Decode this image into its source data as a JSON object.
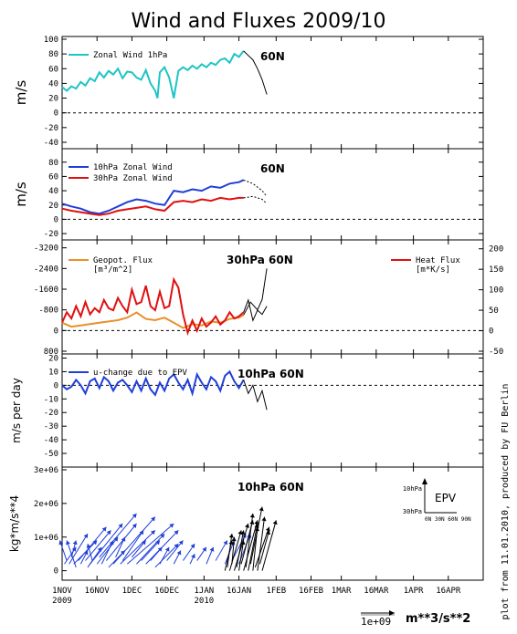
{
  "page": {
    "title": "Wind and Fluxes 2009/10",
    "credit": "plot from 11.01.2010, produced by FU Berlin",
    "scale_value": "1e+09",
    "scale_unit": "m**3/s**2"
  },
  "x_axis": {
    "tick_days": [
      0,
      15,
      30,
      45,
      61,
      76,
      92,
      107,
      120,
      135,
      151,
      166
    ],
    "tick_labels": [
      "1NOV",
      "16NOV",
      "1DEC",
      "16DEC",
      "1JAN",
      "16JAN",
      "1FEB",
      "16FEB",
      "1MAR",
      "16MAR",
      "1APR",
      "16APR"
    ],
    "year_labels": [
      {
        "day": 0,
        "text": "2009"
      },
      {
        "day": 61,
        "text": "2010"
      }
    ],
    "range": [
      0,
      181
    ]
  },
  "chart_data": [
    {
      "id": "zonal-wind-1hpa",
      "type": "line",
      "ylabel": "m/s",
      "region": "60N",
      "ylim": [
        -45,
        100
      ],
      "yticks": [
        -40,
        -20,
        0,
        20,
        40,
        60,
        80,
        100
      ],
      "zero_line": 0,
      "legend": [
        {
          "label": "Zonal Wind 1hPa",
          "color": "#1fc4c4"
        }
      ],
      "series": [
        {
          "name": "Zonal Wind 1hPa",
          "color": "#1fc4c4",
          "x": [
            0,
            2,
            4,
            6,
            8,
            10,
            12,
            14,
            16,
            18,
            20,
            22,
            24,
            26,
            28,
            30,
            32,
            34,
            36,
            38,
            40,
            41,
            42,
            44,
            46,
            48,
            50,
            52,
            54,
            56,
            58,
            60,
            62,
            64,
            66,
            68,
            70,
            72,
            74,
            76,
            78
          ],
          "y": [
            35,
            30,
            36,
            33,
            42,
            37,
            47,
            43,
            55,
            48,
            57,
            52,
            60,
            47,
            56,
            55,
            48,
            45,
            58,
            40,
            30,
            20,
            55,
            62,
            48,
            20,
            57,
            62,
            58,
            64,
            60,
            66,
            62,
            68,
            65,
            72,
            74,
            68,
            80,
            76,
            84
          ]
        },
        {
          "name": "",
          "color": "#000000",
          "x": [
            78,
            80,
            82,
            84,
            86,
            88
          ],
          "y": [
            84,
            78,
            72,
            60,
            45,
            25
          ]
        }
      ]
    },
    {
      "id": "zonal-wind-10-30hpa",
      "type": "line",
      "ylabel": "m/s",
      "region": "60N",
      "ylim": [
        -25,
        95
      ],
      "yticks": [
        -20,
        0,
        20,
        40,
        60,
        80
      ],
      "zero_line": 0,
      "legend": [
        {
          "label": "10hPa Zonal Wind",
          "color": "#1f3fd8"
        },
        {
          "label": "30hPa Zonal Wind",
          "color": "#e01010"
        }
      ],
      "series": [
        {
          "name": "10hPa Zonal Wind",
          "color": "#1f3fd8",
          "x": [
            0,
            4,
            8,
            12,
            16,
            20,
            24,
            28,
            32,
            36,
            40,
            44,
            48,
            52,
            56,
            60,
            64,
            68,
            72,
            76,
            78
          ],
          "y": [
            22,
            18,
            15,
            10,
            8,
            12,
            18,
            24,
            28,
            26,
            22,
            20,
            40,
            38,
            42,
            40,
            46,
            44,
            50,
            52,
            55
          ]
        },
        {
          "name": "30hPa Zonal Wind",
          "color": "#e01010",
          "x": [
            0,
            4,
            8,
            12,
            16,
            20,
            24,
            28,
            32,
            36,
            40,
            44,
            48,
            52,
            56,
            60,
            64,
            68,
            72,
            76,
            78
          ],
          "y": [
            15,
            12,
            10,
            8,
            6,
            8,
            12,
            14,
            16,
            18,
            14,
            12,
            24,
            26,
            24,
            28,
            26,
            30,
            28,
            30,
            30
          ]
        },
        {
          "name": "",
          "color": "#000000",
          "dashed": true,
          "x": [
            78,
            82,
            86,
            88
          ],
          "y": [
            55,
            50,
            40,
            32
          ]
        },
        {
          "name": "",
          "color": "#000000",
          "dashed": true,
          "x": [
            78,
            82,
            86,
            88
          ],
          "y": [
            30,
            32,
            28,
            22
          ]
        }
      ]
    },
    {
      "id": "fluxes-30hpa",
      "type": "line",
      "region": "30hPa 60N",
      "ylim_left": [
        -3400,
        800
      ],
      "yticks_left": [
        800,
        0,
        -800,
        -1600,
        -2400,
        -3200
      ],
      "ylim_right": [
        -50,
        215
      ],
      "yticks_right": [
        -50,
        0,
        50,
        100,
        150,
        200
      ],
      "zero_line": 0,
      "legend": [
        {
          "label": "Geopot. Flux",
          "sub": "[m³/m^2]",
          "color": "#e8902a"
        },
        {
          "label": "Heat Flux",
          "sub": "[m*K/s]",
          "color": "#e01010"
        }
      ],
      "series": [
        {
          "name": "Geopot. Flux",
          "color": "#e8902a",
          "axis": "left",
          "x": [
            0,
            4,
            8,
            12,
            16,
            20,
            24,
            28,
            32,
            36,
            40,
            44,
            48,
            52,
            56,
            60,
            64,
            68,
            72,
            76,
            78
          ],
          "y": [
            -300,
            -150,
            -200,
            -250,
            -300,
            -350,
            -400,
            -500,
            -700,
            -450,
            -400,
            -500,
            -300,
            -100,
            -250,
            -200,
            -350,
            -300,
            -450,
            -500,
            -600
          ]
        },
        {
          "name": "Heat Flux",
          "color": "#e01010",
          "axis": "right",
          "x": [
            0,
            2,
            4,
            6,
            8,
            10,
            12,
            14,
            16,
            18,
            20,
            22,
            24,
            26,
            28,
            30,
            32,
            34,
            36,
            38,
            40,
            42,
            44,
            46,
            48,
            50,
            52,
            54,
            56,
            58,
            60,
            62,
            64,
            66,
            68,
            70,
            72,
            74,
            76,
            78
          ],
          "y": [
            20,
            45,
            30,
            60,
            35,
            70,
            40,
            55,
            45,
            75,
            55,
            50,
            80,
            60,
            45,
            100,
            65,
            70,
            110,
            60,
            50,
            95,
            55,
            60,
            125,
            105,
            40,
            -5,
            25,
            0,
            30,
            10,
            20,
            35,
            15,
            25,
            45,
            30,
            35,
            45
          ]
        },
        {
          "name": "",
          "color": "#000000",
          "axis": "left",
          "x": [
            78,
            81,
            84,
            86,
            88
          ],
          "y": [
            -600,
            -1100,
            -800,
            -1200,
            -2400
          ]
        },
        {
          "name": "",
          "color": "#000000",
          "axis": "right",
          "x": [
            78,
            80,
            82,
            84,
            86,
            88
          ],
          "y": [
            45,
            75,
            25,
            50,
            40,
            60
          ]
        }
      ]
    },
    {
      "id": "u-change-epv",
      "type": "line",
      "ylabel": "m/s per day",
      "region": "10hPa 60N",
      "ylim": [
        -58,
        21
      ],
      "yticks": [
        20,
        10,
        0,
        -10,
        -20,
        -30,
        -40,
        -50
      ],
      "zero_line": 0,
      "legend": [
        {
          "label": "u-change due to EPV",
          "color": "#1f3fd8"
        }
      ],
      "series": [
        {
          "name": "u-change due to EPV",
          "color": "#1f3fd8",
          "x": [
            0,
            2,
            4,
            6,
            8,
            10,
            12,
            14,
            16,
            18,
            20,
            22,
            24,
            26,
            28,
            30,
            32,
            34,
            36,
            38,
            40,
            42,
            44,
            46,
            48,
            50,
            52,
            54,
            56,
            58,
            60,
            62,
            64,
            66,
            68,
            70,
            72,
            74,
            76,
            78
          ],
          "y": [
            0,
            -3,
            -1,
            4,
            0,
            -6,
            3,
            5,
            -2,
            6,
            3,
            -4,
            2,
            4,
            0,
            -5,
            3,
            -4,
            5,
            -3,
            -7,
            2,
            -4,
            5,
            8,
            2,
            -3,
            4,
            -6,
            8,
            2,
            -3,
            6,
            3,
            -4,
            7,
            10,
            3,
            -2,
            4
          ]
        },
        {
          "name": "",
          "color": "#000000",
          "x": [
            78,
            80,
            82,
            84,
            86,
            88
          ],
          "y": [
            4,
            -6,
            0,
            -12,
            -4,
            -18
          ]
        }
      ]
    },
    {
      "id": "epv-vectors",
      "type": "scatter",
      "ylabel": "kg*m/s**4",
      "region": "10hPa 60N",
      "ylim": [
        -0.2,
        3.0
      ],
      "yticks": [
        0,
        1,
        2,
        3
      ],
      "ytick_labels": [
        "0",
        "1e+06",
        "2e+06",
        "3e+06"
      ],
      "inset_legend": {
        "title": "EPV",
        "y_labels": [
          "10hPa",
          "30hPa"
        ],
        "x_labels": "0N 30N 60N 90N"
      },
      "vectors": [
        {
          "x": 1,
          "y": 0.2,
          "dx": 5,
          "dy": 0.5,
          "color": "#1f3fd8"
        },
        {
          "x": 2,
          "y": 0.3,
          "dx": -3,
          "dy": 0.6,
          "color": "#1f3fd8"
        },
        {
          "x": 3,
          "y": 0.2,
          "dx": 8,
          "dy": 0.9,
          "color": "#1f3fd8"
        },
        {
          "x": 4,
          "y": 0.4,
          "dx": 2,
          "dy": 0.5,
          "color": "#1f3fd8"
        },
        {
          "x": 5,
          "y": 0.2,
          "dx": 10,
          "dy": 0.7,
          "color": "#1f3fd8"
        },
        {
          "x": 6,
          "y": 0.1,
          "dx": -4,
          "dy": 0.8,
          "color": "#1f3fd8"
        },
        {
          "x": 7,
          "y": 0.3,
          "dx": 12,
          "dy": 1.0,
          "color": "#1f3fd8"
        },
        {
          "x": 8,
          "y": 0.2,
          "dx": 3,
          "dy": 0.4,
          "color": "#1f3fd8"
        },
        {
          "x": 10,
          "y": 0.3,
          "dx": 11,
          "dy": 0.9,
          "color": "#1f3fd8"
        },
        {
          "x": 11,
          "y": 0.1,
          "dx": 6,
          "dy": 0.6,
          "color": "#1f3fd8"
        },
        {
          "x": 12,
          "y": 0.2,
          "dx": 14,
          "dy": 1.2,
          "color": "#1f3fd8"
        },
        {
          "x": 13,
          "y": 0.3,
          "dx": -2,
          "dy": 0.5,
          "color": "#1f3fd8"
        },
        {
          "x": 15,
          "y": 0.2,
          "dx": 9,
          "dy": 0.8,
          "color": "#1f3fd8"
        },
        {
          "x": 16,
          "y": 0.4,
          "dx": 16,
          "dy": 1.3,
          "color": "#1f3fd8"
        },
        {
          "x": 17,
          "y": 0.2,
          "dx": 5,
          "dy": 0.7,
          "color": "#1f3fd8"
        },
        {
          "x": 19,
          "y": 0.3,
          "dx": 13,
          "dy": 1.1,
          "color": "#1f3fd8"
        },
        {
          "x": 20,
          "y": 0.1,
          "dx": 7,
          "dy": 0.5,
          "color": "#1f3fd8"
        },
        {
          "x": 22,
          "y": 0.2,
          "dx": 18,
          "dy": 1.4,
          "color": "#1f3fd8"
        },
        {
          "x": 23,
          "y": 0.4,
          "dx": 4,
          "dy": 0.6,
          "color": "#1f3fd8"
        },
        {
          "x": 25,
          "y": 0.2,
          "dx": 15,
          "dy": 1.0,
          "color": "#1f3fd8"
        },
        {
          "x": 26,
          "y": 0.3,
          "dx": 9,
          "dy": 0.9,
          "color": "#1f3fd8"
        },
        {
          "x": 28,
          "y": 0.2,
          "dx": 20,
          "dy": 1.2,
          "color": "#1f3fd8"
        },
        {
          "x": 30,
          "y": 0.4,
          "dx": 6,
          "dy": 0.5,
          "color": "#1f3fd8"
        },
        {
          "x": 32,
          "y": 0.2,
          "dx": 12,
          "dy": 0.9,
          "color": "#1f3fd8"
        },
        {
          "x": 34,
          "y": 0.3,
          "dx": 8,
          "dy": 0.6,
          "color": "#1f3fd8"
        },
        {
          "x": 36,
          "y": 0.2,
          "dx": 14,
          "dy": 1.0,
          "color": "#1f3fd8"
        },
        {
          "x": 38,
          "y": 0.3,
          "dx": 5,
          "dy": 0.4,
          "color": "#1f3fd8"
        },
        {
          "x": 40,
          "y": 0.1,
          "dx": 10,
          "dy": 0.7,
          "color": "#1f3fd8"
        },
        {
          "x": 42,
          "y": 0.2,
          "dx": 4,
          "dy": 0.5,
          "color": "#1f3fd8"
        },
        {
          "x": 45,
          "y": 0.3,
          "dx": 7,
          "dy": 0.6,
          "color": "#1f3fd8"
        },
        {
          "x": 48,
          "y": 0.2,
          "dx": 3,
          "dy": 0.4,
          "color": "#1f3fd8"
        },
        {
          "x": 52,
          "y": 0.3,
          "dx": 5,
          "dy": 0.5,
          "color": "#1f3fd8"
        },
        {
          "x": 55,
          "y": 0.2,
          "dx": 2,
          "dy": 0.3,
          "color": "#1f3fd8"
        },
        {
          "x": 58,
          "y": 0.3,
          "dx": 4,
          "dy": 0.4,
          "color": "#1f3fd8"
        },
        {
          "x": 62,
          "y": 0.2,
          "dx": 3,
          "dy": 0.5,
          "color": "#1f3fd8"
        },
        {
          "x": 66,
          "y": 0.3,
          "dx": 5,
          "dy": 0.6,
          "color": "#1f3fd8"
        },
        {
          "x": 70,
          "y": 0.2,
          "dx": 4,
          "dy": 0.7,
          "color": "#1f3fd8"
        },
        {
          "x": 73,
          "y": 0.3,
          "dx": 6,
          "dy": 0.8,
          "color": "#1f3fd8"
        },
        {
          "x": 76,
          "y": 0.2,
          "dx": 5,
          "dy": 0.9,
          "color": "#1f3fd8"
        },
        {
          "x": 70,
          "y": 0.0,
          "dx": 3,
          "dy": 0.9,
          "color": "#000000"
        },
        {
          "x": 71,
          "y": 0.1,
          "dx": 2,
          "dy": 1.0,
          "color": "#000000"
        },
        {
          "x": 72,
          "y": 0.0,
          "dx": 5,
          "dy": 1.2,
          "color": "#000000"
        },
        {
          "x": 73,
          "y": 0.2,
          "dx": 1,
          "dy": 0.8,
          "color": "#000000"
        },
        {
          "x": 74,
          "y": 0.0,
          "dx": 6,
          "dy": 1.4,
          "color": "#000000"
        },
        {
          "x": 75,
          "y": 0.1,
          "dx": 3,
          "dy": 1.1,
          "color": "#000000"
        },
        {
          "x": 76,
          "y": 0.0,
          "dx": 2,
          "dy": 0.9,
          "color": "#000000"
        },
        {
          "x": 77,
          "y": 0.2,
          "dx": 5,
          "dy": 1.3,
          "color": "#000000"
        },
        {
          "x": 78,
          "y": 0.0,
          "dx": 6,
          "dy": 1.5,
          "color": "#000000"
        },
        {
          "x": 79,
          "y": 0.1,
          "dx": 3,
          "dy": 1.6,
          "color": "#000000"
        },
        {
          "x": 80,
          "y": 0.0,
          "dx": 4,
          "dy": 1.4,
          "color": "#000000"
        },
        {
          "x": 81,
          "y": 0.2,
          "dx": 5,
          "dy": 1.7,
          "color": "#000000"
        },
        {
          "x": 82,
          "y": 0.0,
          "dx": 2,
          "dy": 1.3,
          "color": "#000000"
        },
        {
          "x": 83,
          "y": 0.1,
          "dx": 6,
          "dy": 1.2,
          "color": "#000000"
        },
        {
          "x": 84,
          "y": 0.0,
          "dx": 3,
          "dy": 1.6,
          "color": "#000000"
        },
        {
          "x": 85,
          "y": 0.2,
          "dx": 4,
          "dy": 1.0,
          "color": "#000000"
        },
        {
          "x": 86,
          "y": 0.0,
          "dx": 6,
          "dy": 1.5,
          "color": "#000000"
        }
      ]
    }
  ]
}
